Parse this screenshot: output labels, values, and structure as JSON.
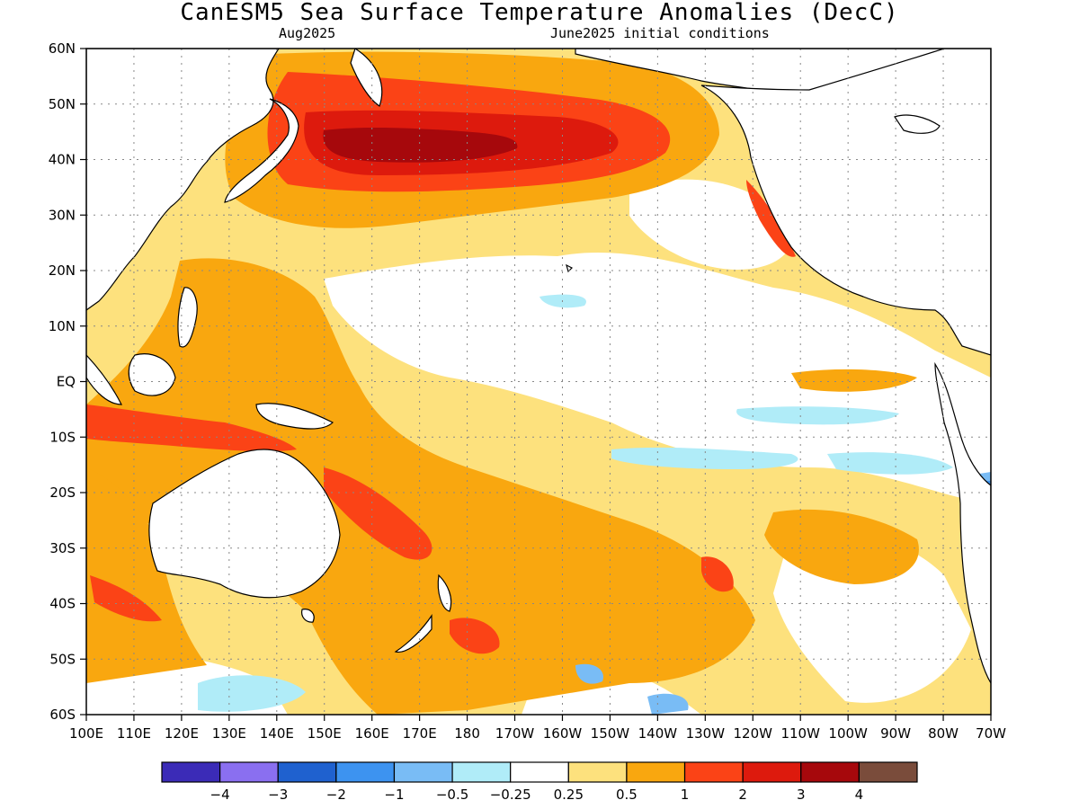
{
  "header": {
    "title": "CanESM5 Sea Surface Temperature Anomalies (DecC)",
    "valid_month": "Aug2025",
    "init_conditions": "June2025 initial conditions"
  },
  "map": {
    "region": "Pacific Ocean",
    "projection": "lat-lon",
    "lon_range": [
      100,
      290
    ],
    "lat_range": [
      -60,
      60
    ],
    "lat_labels": [
      "60N",
      "50N",
      "40N",
      "30N",
      "20N",
      "10N",
      "EQ",
      "10S",
      "20S",
      "30S",
      "40S",
      "50S",
      "60S"
    ],
    "lon_labels": [
      "100E",
      "110E",
      "120E",
      "130E",
      "140E",
      "150E",
      "160E",
      "170E",
      "180",
      "170W",
      "160W",
      "150W",
      "140W",
      "130W",
      "120W",
      "110W",
      "100W",
      "90W",
      "80W",
      "70W"
    ],
    "land_color": "#ffffff",
    "coastline_color": "#000000",
    "grid": "dotted"
  },
  "legend": {
    "colors": [
      "#3b2bb7",
      "#8a6ff0",
      "#1f61cf",
      "#3d93f0",
      "#79bcf5",
      "#b0ecf8",
      "#ffffff",
      "#fde17d",
      "#f9a70f",
      "#fb4316",
      "#dd1a0d",
      "#a6080c",
      "#7a4c3b"
    ],
    "labels": [
      "−4",
      "−3",
      "−2",
      "−1",
      "−0.5",
      "−0.25",
      "0.25",
      "0.5",
      "1",
      "2",
      "3",
      "4"
    ]
  }
}
